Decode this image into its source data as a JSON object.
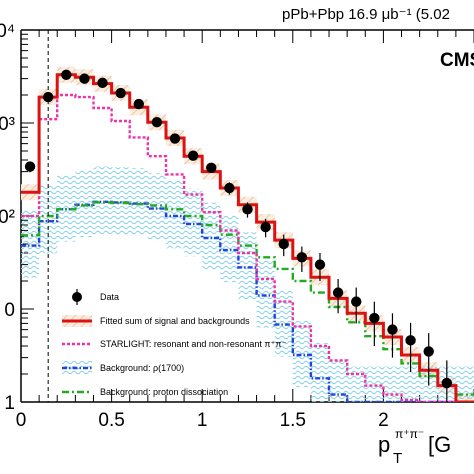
{
  "header": "pPb+Pbp 16.9 μb⁻¹ (5.02",
  "cms_label": "CMS",
  "chart_data": {
    "type": "step-histogram",
    "x_axis": {
      "title_main": "p",
      "title_sub": "T",
      "title_sup": "π⁺π⁻",
      "title_unit": "[G",
      "range": [
        0,
        2.5
      ],
      "tick_labels": [
        "0",
        "0.5",
        "1",
        "1.5",
        "2"
      ]
    },
    "y_axis": {
      "scale": "log",
      "range": [
        1,
        10000
      ],
      "tick_labels": [
        "1",
        "0",
        "0²",
        "0³",
        "0⁴"
      ]
    },
    "bin_edges": [
      0.0,
      0.1,
      0.2,
      0.3,
      0.4,
      0.5,
      0.6,
      0.7,
      0.8,
      0.9,
      1.0,
      1.1,
      1.2,
      1.3,
      1.4,
      1.5,
      1.6,
      1.7,
      1.8,
      1.9,
      2.0,
      2.1,
      2.2,
      2.3,
      2.4,
      2.5
    ],
    "data_points": {
      "name": "Data",
      "x": [
        0.05,
        0.15,
        0.25,
        0.35,
        0.45,
        0.55,
        0.65,
        0.75,
        0.85,
        0.95,
        1.05,
        1.15,
        1.25,
        1.35,
        1.45,
        1.55,
        1.65,
        1.75,
        1.85,
        1.95,
        2.05,
        2.15,
        2.25,
        2.35
      ],
      "y": [
        340,
        1900,
        3300,
        3000,
        2700,
        2100,
        1600,
        1020,
        680,
        445,
        330,
        200,
        118,
        76,
        50,
        36,
        30,
        15,
        12,
        8,
        6,
        4.6,
        3.5,
        1.6
      ],
      "err": [
        45,
        150,
        200,
        180,
        160,
        140,
        110,
        85,
        65,
        50,
        40,
        30,
        22,
        17,
        13,
        11,
        10,
        6,
        5,
        4,
        3,
        2.5,
        2,
        1.2
      ]
    },
    "series": [
      {
        "name": "Fitted sum of signal and backgrounds",
        "color": "#dd1111",
        "values": [
          180,
          1900,
          3300,
          3100,
          2650,
          2100,
          1480,
          1020,
          690,
          440,
          300,
          200,
          132,
          86,
          55,
          35,
          22,
          13,
          9,
          7,
          5,
          3.2,
          2.2,
          1.5,
          1.0
        ]
      },
      {
        "name": "STARLIGHT: resonant and non-resonant π⁺π⁻",
        "color": "#ee33aa",
        "values": [
          100,
          1100,
          2000,
          1900,
          1450,
          1050,
          700,
          440,
          280,
          170,
          110,
          70,
          40,
          21,
          12,
          6.5,
          4.0,
          2.8,
          2.0,
          1.5,
          1.2,
          1.05,
          1.0,
          1.0,
          1.0
        ]
      },
      {
        "name": "Background: ρ(1700)",
        "color": "#2244dd",
        "values": [
          48,
          88,
          118,
          132,
          142,
          140,
          136,
          120,
          100,
          82,
          58,
          43,
          28,
          14,
          6.8,
          3.2,
          1.8,
          1.2,
          1.0,
          1.0,
          1.0,
          1.0,
          1.0,
          1.0,
          1.0
        ]
      },
      {
        "name": "Background: proton dissociation",
        "color": "#22aa22",
        "values": [
          62,
          100,
          118,
          130,
          140,
          138,
          134,
          130,
          118,
          100,
          80,
          63,
          48,
          36,
          27,
          20,
          15,
          10.5,
          7.2,
          5.1,
          3.7,
          2.6,
          1.9,
          1.5,
          1.2
        ]
      }
    ],
    "vertical_line_x": 0.15,
    "legend": {
      "position": "left-bottom",
      "entries": [
        "Data",
        "Fitted sum of signal and backgrounds",
        "STARLIGHT: resonant and non-resonant π⁺π⁻",
        "Background: ρ(1700)",
        "Background: proton dissociation"
      ]
    }
  }
}
